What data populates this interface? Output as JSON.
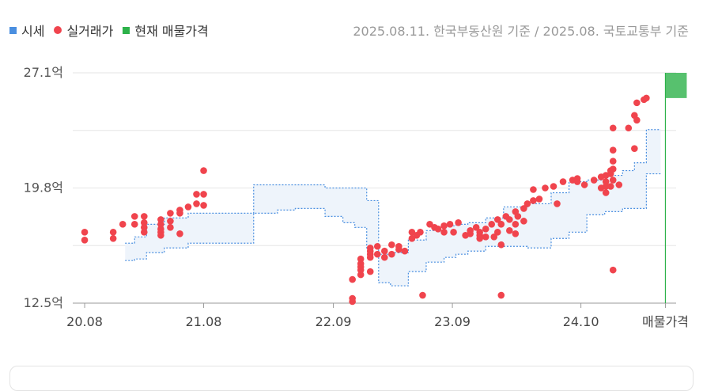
{
  "legend": {
    "items": [
      {
        "label": "시세",
        "color": "#4a8fe0",
        "shape": "square"
      },
      {
        "label": "실거래가",
        "color": "#f0444d",
        "shape": "dot"
      },
      {
        "label": "현재 매물가격",
        "color": "#2db24a",
        "shape": "square"
      }
    ]
  },
  "source": "2025.08.11. 한국부동산원 기준 / 2025.08. 국토교통부 기준",
  "chart_data": {
    "type": "scatter",
    "title": "",
    "xlabel": "",
    "ylabel": "",
    "ylim": [
      12.5,
      27.1
    ],
    "y_ticks": [
      "27.1억",
      "19.8억",
      "12.5억"
    ],
    "y_tick_values": [
      27.1,
      19.8,
      12.5
    ],
    "x_ticks": [
      "20.08",
      "21.08",
      "22.09",
      "23.09",
      "24.10",
      "매물가격"
    ],
    "x_tick_values": [
      2020.58,
      2021.58,
      2022.67,
      2023.67,
      2024.75,
      2025.46
    ],
    "xlim": [
      2020.48,
      2025.55
    ],
    "grid": true,
    "series": [
      {
        "name": "시세",
        "color": "#4a8fe0",
        "type": "band",
        "x": [
          2020.92,
          2021.0,
          2021.1,
          2021.25,
          2021.45,
          2021.75,
          2021.92,
          2022.0,
          2022.2,
          2022.35,
          2022.5,
          2022.6,
          2022.75,
          2022.85,
          2022.95,
          2023.05,
          2023.15,
          2023.3,
          2023.45,
          2023.6,
          2023.7,
          2023.8,
          2023.95,
          2024.1,
          2024.3,
          2024.5,
          2024.65,
          2024.8,
          2024.95,
          2025.1,
          2025.2,
          2025.3
        ],
        "low": [
          15.2,
          15.3,
          15.7,
          16.0,
          16.3,
          16.3,
          16.3,
          18.2,
          18.4,
          18.5,
          18.5,
          18.0,
          17.6,
          17.3,
          16.0,
          13.8,
          13.6,
          14.5,
          15.1,
          15.4,
          15.6,
          15.8,
          16.1,
          16.1,
          16.0,
          16.6,
          17.0,
          18.1,
          18.3,
          18.5,
          18.5,
          20.7
        ],
        "high": [
          16.3,
          16.7,
          17.5,
          17.9,
          18.2,
          18.2,
          18.2,
          20.0,
          20.0,
          20.0,
          20.0,
          19.8,
          19.8,
          19.8,
          19.0,
          15.6,
          15.7,
          16.5,
          17.1,
          17.4,
          17.5,
          17.6,
          17.9,
          18.6,
          18.8,
          19.5,
          20.2,
          20.3,
          20.6,
          20.9,
          21.4,
          23.5
        ]
      },
      {
        "name": "실거래가",
        "color": "#f0444d",
        "type": "scatter",
        "points": [
          [
            2020.58,
            17.0
          ],
          [
            2020.58,
            16.5
          ],
          [
            2020.82,
            17.0
          ],
          [
            2020.82,
            16.6
          ],
          [
            2020.9,
            17.5
          ],
          [
            2021.0,
            17.5
          ],
          [
            2021.0,
            18.0
          ],
          [
            2021.08,
            17.0
          ],
          [
            2021.08,
            17.3
          ],
          [
            2021.08,
            18.0
          ],
          [
            2021.08,
            17.6
          ],
          [
            2021.22,
            17.5
          ],
          [
            2021.22,
            17.0
          ],
          [
            2021.22,
            16.8
          ],
          [
            2021.22,
            17.2
          ],
          [
            2021.22,
            17.8
          ],
          [
            2021.3,
            18.2
          ],
          [
            2021.3,
            17.7
          ],
          [
            2021.3,
            17.3
          ],
          [
            2021.38,
            18.4
          ],
          [
            2021.38,
            16.9
          ],
          [
            2021.38,
            18.2
          ],
          [
            2021.45,
            18.6
          ],
          [
            2021.52,
            18.8
          ],
          [
            2021.52,
            19.4
          ],
          [
            2021.58,
            18.7
          ],
          [
            2021.58,
            20.9
          ],
          [
            2021.58,
            19.4
          ],
          [
            2022.83,
            12.6
          ],
          [
            2022.83,
            12.8
          ],
          [
            2022.83,
            14.0
          ],
          [
            2022.9,
            14.8
          ],
          [
            2022.9,
            15.0
          ],
          [
            2022.9,
            15.3
          ],
          [
            2022.9,
            14.6
          ],
          [
            2022.9,
            14.3
          ],
          [
            2022.98,
            15.8
          ],
          [
            2022.98,
            15.4
          ],
          [
            2022.98,
            15.6
          ],
          [
            2022.98,
            16.0
          ],
          [
            2022.98,
            14.5
          ],
          [
            2023.04,
            15.6
          ],
          [
            2023.04,
            16.1
          ],
          [
            2023.1,
            15.4
          ],
          [
            2023.1,
            15.8
          ],
          [
            2023.16,
            15.6
          ],
          [
            2023.16,
            16.2
          ],
          [
            2023.22,
            15.9
          ],
          [
            2023.22,
            16.1
          ],
          [
            2023.27,
            15.8
          ],
          [
            2023.33,
            16.6
          ],
          [
            2023.33,
            17.0
          ],
          [
            2023.37,
            16.8
          ],
          [
            2023.4,
            17.0
          ],
          [
            2023.42,
            13.0
          ],
          [
            2023.48,
            17.5
          ],
          [
            2023.52,
            17.3
          ],
          [
            2023.55,
            17.2
          ],
          [
            2023.6,
            17.0
          ],
          [
            2023.6,
            17.4
          ],
          [
            2023.65,
            17.5
          ],
          [
            2023.68,
            17.0
          ],
          [
            2023.72,
            17.6
          ],
          [
            2023.78,
            16.8
          ],
          [
            2023.82,
            17.1
          ],
          [
            2023.82,
            16.9
          ],
          [
            2023.87,
            17.3
          ],
          [
            2023.9,
            16.8
          ],
          [
            2023.9,
            16.6
          ],
          [
            2023.9,
            17.0
          ],
          [
            2023.95,
            17.2
          ],
          [
            2023.95,
            16.7
          ],
          [
            2024.0,
            17.5
          ],
          [
            2024.02,
            16.7
          ],
          [
            2024.05,
            17.0
          ],
          [
            2024.05,
            17.8
          ],
          [
            2024.08,
            16.2
          ],
          [
            2024.08,
            17.5
          ],
          [
            2024.08,
            13.0
          ],
          [
            2024.12,
            18.0
          ],
          [
            2024.15,
            17.1
          ],
          [
            2024.15,
            17.8
          ],
          [
            2024.2,
            18.3
          ],
          [
            2024.2,
            17.5
          ],
          [
            2024.2,
            16.9
          ],
          [
            2024.22,
            18.0
          ],
          [
            2024.27,
            18.5
          ],
          [
            2024.27,
            17.7
          ],
          [
            2024.3,
            18.8
          ],
          [
            2024.35,
            19.0
          ],
          [
            2024.35,
            19.7
          ],
          [
            2024.4,
            19.1
          ],
          [
            2024.45,
            19.8
          ],
          [
            2024.52,
            19.9
          ],
          [
            2024.55,
            18.8
          ],
          [
            2024.6,
            20.2
          ],
          [
            2024.68,
            20.3
          ],
          [
            2024.72,
            20.4
          ],
          [
            2024.72,
            20.2
          ],
          [
            2024.78,
            20.0
          ],
          [
            2024.86,
            20.3
          ],
          [
            2024.92,
            20.5
          ],
          [
            2024.92,
            19.8
          ],
          [
            2024.96,
            20.6
          ],
          [
            2024.96,
            20.2
          ],
          [
            2024.96,
            19.9
          ],
          [
            2024.96,
            19.5
          ],
          [
            2025.0,
            20.7
          ],
          [
            2025.0,
            20.9
          ],
          [
            2025.0,
            19.9
          ],
          [
            2025.02,
            21.5
          ],
          [
            2025.02,
            21.0
          ],
          [
            2025.02,
            20.3
          ],
          [
            2025.02,
            14.6
          ],
          [
            2025.02,
            23.6
          ],
          [
            2025.02,
            22.2
          ],
          [
            2025.07,
            20.0
          ],
          [
            2025.15,
            23.6
          ],
          [
            2025.2,
            22.3
          ],
          [
            2025.2,
            24.4
          ],
          [
            2025.22,
            24.1
          ],
          [
            2025.22,
            25.2
          ],
          [
            2025.28,
            25.4
          ],
          [
            2025.3,
            25.5
          ]
        ]
      },
      {
        "name": "현재 매물가격",
        "color": "#2db24a",
        "type": "range",
        "low": 25.5,
        "high": 27.1
      }
    ]
  }
}
